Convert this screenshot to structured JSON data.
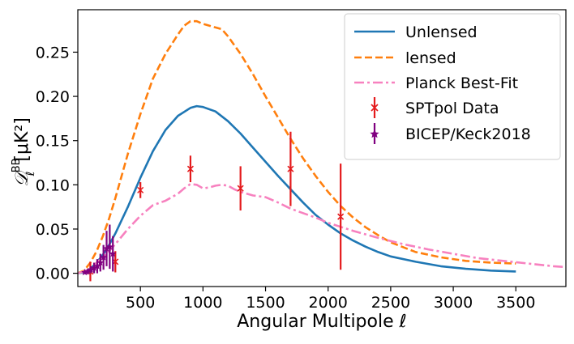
{
  "chart_data": {
    "type": "line",
    "title": "",
    "xlabel": "Angular Multipole",
    "xlabel_symbol": "ℓ",
    "ylabel_main": "𝒟",
    "ylabel_sub": "ℓ",
    "ylabel_sup": "BB",
    "ylabel_unit": "[μK²]",
    "xlim": [
      0,
      3900
    ],
    "ylim": [
      -0.015,
      0.298
    ],
    "xticks": [
      500,
      1000,
      1500,
      2000,
      2500,
      3000,
      3500
    ],
    "xtick_labels": [
      "500",
      "1000",
      "1500",
      "2000",
      "2500",
      "3000",
      "3500"
    ],
    "yticks": [
      0.0,
      0.05,
      0.1,
      0.15,
      0.2,
      0.25
    ],
    "ytick_labels": [
      "0.00",
      "0.05",
      "0.10",
      "0.15",
      "0.20",
      "0.25"
    ],
    "grid": false,
    "legend_position": "upper right",
    "series": [
      {
        "name": "Unlensed",
        "kind": "line",
        "style": "solid",
        "color": "#1f77b4",
        "x": [
          0,
          50,
          100,
          150,
          200,
          250,
          300,
          400,
          500,
          600,
          700,
          800,
          900,
          950,
          1000,
          1100,
          1200,
          1300,
          1400,
          1500,
          1600,
          1700,
          1800,
          1900,
          2000,
          2100,
          2200,
          2300,
          2400,
          2500,
          2700,
          2900,
          3100,
          3300,
          3500
        ],
        "y": [
          0.0,
          0.001,
          0.005,
          0.012,
          0.021,
          0.032,
          0.045,
          0.075,
          0.108,
          0.138,
          0.162,
          0.178,
          0.187,
          0.189,
          0.188,
          0.183,
          0.172,
          0.158,
          0.142,
          0.126,
          0.11,
          0.095,
          0.08,
          0.066,
          0.055,
          0.045,
          0.037,
          0.03,
          0.024,
          0.019,
          0.013,
          0.008,
          0.005,
          0.003,
          0.002
        ]
      },
      {
        "name": "lensed",
        "kind": "line",
        "style": "dashed",
        "color": "#ff7f0e",
        "x": [
          0,
          50,
          100,
          150,
          200,
          250,
          300,
          400,
          500,
          600,
          700,
          800,
          850,
          900,
          950,
          1000,
          1100,
          1150,
          1200,
          1300,
          1400,
          1500,
          1600,
          1700,
          1800,
          1900,
          2000,
          2100,
          2200,
          2300,
          2400,
          2500,
          2700,
          2900,
          3100,
          3300,
          3500
        ],
        "y": [
          0.0,
          0.003,
          0.012,
          0.025,
          0.042,
          0.062,
          0.085,
          0.135,
          0.18,
          0.22,
          0.248,
          0.27,
          0.28,
          0.285,
          0.285,
          0.282,
          0.278,
          0.276,
          0.268,
          0.248,
          0.225,
          0.2,
          0.176,
          0.152,
          0.13,
          0.11,
          0.092,
          0.076,
          0.063,
          0.052,
          0.043,
          0.035,
          0.024,
          0.018,
          0.014,
          0.012,
          0.011
        ]
      },
      {
        "name": "Planck Best-Fit",
        "kind": "line",
        "style": "dashdot",
        "color": "#f781bf",
        "x": [
          0,
          50,
          100,
          150,
          200,
          250,
          300,
          400,
          500,
          600,
          700,
          800,
          850,
          900,
          950,
          1000,
          1050,
          1100,
          1150,
          1200,
          1250,
          1300,
          1400,
          1500,
          1600,
          1700,
          1800,
          1900,
          2000,
          2200,
          2400,
          2600,
          2800,
          3000,
          3200,
          3400,
          3600,
          3800,
          3900
        ],
        "y": [
          0.0,
          0.002,
          0.006,
          0.012,
          0.018,
          0.025,
          0.033,
          0.05,
          0.065,
          0.077,
          0.082,
          0.09,
          0.096,
          0.101,
          0.1,
          0.096,
          0.097,
          0.099,
          0.1,
          0.099,
          0.095,
          0.092,
          0.088,
          0.086,
          0.08,
          0.073,
          0.068,
          0.063,
          0.057,
          0.048,
          0.04,
          0.033,
          0.027,
          0.022,
          0.017,
          0.014,
          0.011,
          0.008,
          0.007
        ]
      },
      {
        "name": "SPTpol Data",
        "kind": "errorbar",
        "marker": "x",
        "color": "#e41a1c",
        "x": [
          100,
          300,
          500,
          900,
          1300,
          1700,
          2100
        ],
        "y": [
          0.002,
          0.013,
          0.094,
          0.118,
          0.096,
          0.118,
          0.064
        ],
        "yerr": [
          0.011,
          0.012,
          0.009,
          0.015,
          0.025,
          0.042,
          0.06
        ]
      },
      {
        "name": "BICEP/Keck2018",
        "kind": "errorbar",
        "marker": "star",
        "color": "#800080",
        "x": [
          55,
          80,
          105,
          130,
          155,
          180,
          205,
          230,
          255,
          280
        ],
        "y": [
          0.001,
          0.002,
          0.004,
          0.006,
          0.008,
          0.012,
          0.018,
          0.028,
          0.03,
          0.022
        ],
        "yerr": [
          0.002,
          0.003,
          0.004,
          0.006,
          0.008,
          0.01,
          0.014,
          0.02,
          0.025,
          0.02
        ]
      }
    ]
  }
}
